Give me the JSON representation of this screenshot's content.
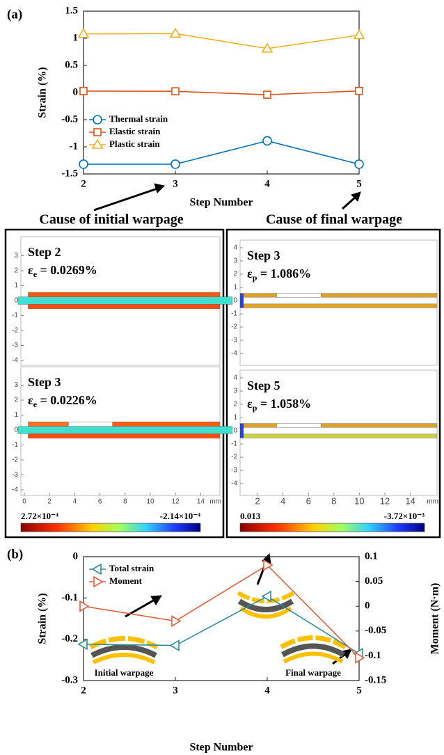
{
  "chart_data": [
    {
      "type": "line",
      "panel_label": "(a)",
      "ylabel": "Strain (%)",
      "xlabel": "Step Number",
      "x": [
        2,
        3,
        4,
        5
      ],
      "xlim": [
        2,
        5
      ],
      "xticks": [
        2,
        3,
        4,
        5
      ],
      "ylim": [
        -1.5,
        1.5
      ],
      "yticks": [
        -1.5,
        -1,
        -0.5,
        0,
        0.5,
        1,
        1.5
      ],
      "legend": "lower left",
      "series": [
        {
          "name": "Thermal strain",
          "color": "#0072bd",
          "marker": "circle",
          "values": [
            -1.32,
            -1.32,
            -0.89,
            -1.32
          ]
        },
        {
          "name": "Elastic strain",
          "color": "#d95319",
          "marker": "square",
          "values": [
            0.027,
            0.023,
            -0.04,
            0.03
          ]
        },
        {
          "name": "Plastic strain",
          "color": "#edb120",
          "marker": "triangle",
          "values": [
            1.08,
            1.086,
            0.81,
            1.058
          ]
        }
      ],
      "annotations": [
        "Cause of initial warpage",
        "Cause of final warpage"
      ]
    },
    {
      "type": "line",
      "panel_label": "(b)",
      "ylabel": "Strain (%)",
      "y2label": "Moment (N·m)",
      "xlabel": "Step Number",
      "x": [
        2,
        3,
        4,
        5
      ],
      "xlim": [
        2,
        5
      ],
      "xticks": [
        2,
        3,
        4,
        5
      ],
      "ylim": [
        -0.3,
        0
      ],
      "yticks": [
        -0.3,
        -0.2,
        -0.1,
        0
      ],
      "y2lim": [
        -0.15,
        0.1
      ],
      "y2ticks": [
        -0.15,
        -0.1,
        -0.05,
        0,
        0.05,
        0.1
      ],
      "legend": "upper left",
      "series": [
        {
          "name": "Total strain",
          "color": "#2f8c9c",
          "marker": "triangle-left",
          "values": [
            -0.212,
            -0.215,
            -0.096,
            -0.235
          ]
        },
        {
          "name": "Moment",
          "color": "#e0603a",
          "marker": "triangle-right",
          "axis": "y2",
          "values": [
            0.0,
            -0.03,
            0.083,
            -0.104
          ]
        }
      ],
      "annotations": [
        "Initial warpage",
        "Final warpage"
      ]
    }
  ],
  "contour_panels": [
    {
      "yticks": [
        -4,
        -3,
        -2,
        -1,
        0,
        1,
        2,
        3
      ],
      "xticks": [
        0,
        2,
        4,
        6,
        8,
        10,
        12,
        14
      ],
      "unit": "mm",
      "colorbar_max": "2.72×10⁻⁴",
      "colorbar_min": "-2.14×10⁻⁴",
      "plots": [
        {
          "step": "Step 2",
          "symbol": "ε",
          "subscript": "e",
          "value_text": " = 0.0269%"
        },
        {
          "step": "Step 3",
          "symbol": "ε",
          "subscript": "e",
          "value_text": " = 0.0226%"
        }
      ]
    },
    {
      "yticks": [
        -4,
        -3,
        -2,
        -1,
        0,
        1,
        2,
        3,
        4
      ],
      "xticks": [
        2,
        4,
        6,
        8,
        10,
        12,
        14
      ],
      "unit": "mm",
      "colorbar_max": "0.013",
      "colorbar_min": "-3.72×10⁻³",
      "plots": [
        {
          "step": "Step 3",
          "symbol": "ε",
          "subscript": "p",
          "value_text": " = 1.086%"
        },
        {
          "step": "Step 5",
          "symbol": "ε",
          "subscript": "p",
          "value_text": " = 1.058%"
        }
      ]
    }
  ]
}
